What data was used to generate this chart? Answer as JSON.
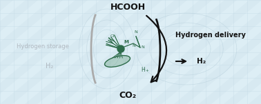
{
  "bg_color": "#ddeef5",
  "stripe_color": "#c5dce8",
  "grid_color": "#c0d8e4",
  "catalyst_color": "#2d6b4a",
  "text_dark": "#111111",
  "text_gray": "#b0b8c0",
  "arrow_color": "#111111",
  "title": "HCOOH",
  "co2_label": "CO₂",
  "h2_left": "H₂",
  "h2_right": "H₂",
  "hydrogen_storage": "Hydrogen storage",
  "hydrogen_delivery": "Hydrogen delivery",
  "hplus": "⁺",
  "figsize": [
    3.78,
    1.51
  ],
  "dpi": 100
}
